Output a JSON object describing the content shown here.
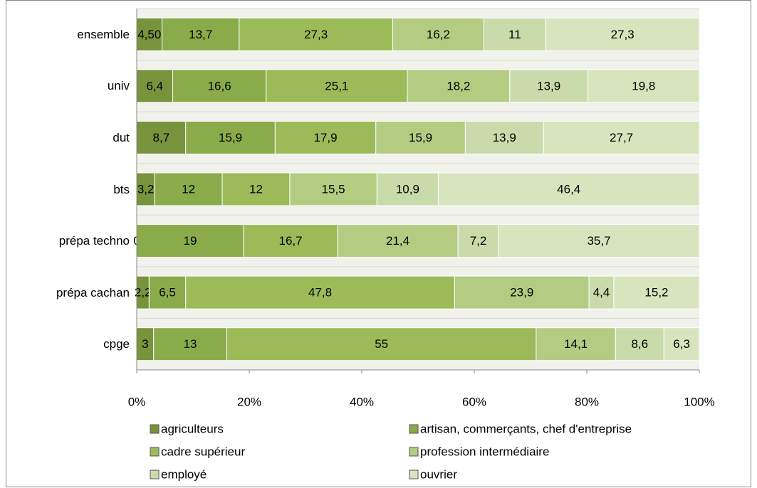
{
  "chart_data": {
    "type": "stacked_barh",
    "categories": [
      "ensemble",
      "univ",
      "dut",
      "bts",
      "prépa techno",
      "prépa cachan",
      "cpge"
    ],
    "series": [
      {
        "name": "agriculteurs",
        "color": "#77933c",
        "values": [
          4.5,
          6.4,
          8.7,
          3.2,
          0,
          2.2,
          3
        ],
        "value_labels": [
          "4,50",
          "6,4",
          "8,7",
          "3,2",
          "0",
          "2,2",
          "3"
        ]
      },
      {
        "name": "artisan, commerçants, chef d'entreprise",
        "color": "#8aab4a",
        "values": [
          13.7,
          16.6,
          15.9,
          12,
          19,
          6.5,
          13
        ],
        "value_labels": [
          "13,7",
          "16,6",
          "15,9",
          "12",
          "19",
          "6,5",
          "13"
        ]
      },
      {
        "name": "cadre supérieur",
        "color": "#9bbb59",
        "values": [
          27.3,
          25.1,
          17.9,
          12,
          16.7,
          47.8,
          55
        ],
        "value_labels": [
          "27,3",
          "25,1",
          "17,9",
          "12",
          "16,7",
          "47,8",
          "55"
        ]
      },
      {
        "name": "profession intermédiaire",
        "color": "#b3cc82",
        "values": [
          16.2,
          18.2,
          15.9,
          15.5,
          21.4,
          23.9,
          14.1
        ],
        "value_labels": [
          "16,2",
          "18,2",
          "15,9",
          "15,5",
          "21,4",
          "23,9",
          "14,1"
        ]
      },
      {
        "name": "employé",
        "color": "#c9dbab",
        "values": [
          11,
          13.9,
          13.9,
          10.9,
          7.2,
          4.4,
          8.6
        ],
        "value_labels": [
          "11",
          "13,9",
          "13,9",
          "10,9",
          "7,2",
          "4,4",
          "8,6"
        ]
      },
      {
        "name": "ouvrier",
        "color": "#d7e4bd",
        "values": [
          27.3,
          19.8,
          27.7,
          46.4,
          35.7,
          15.2,
          6.3
        ],
        "value_labels": [
          "27,3",
          "19,8",
          "27,7",
          "46,4",
          "35,7",
          "15,2",
          "6,3"
        ]
      }
    ],
    "xlim": [
      0,
      100
    ],
    "xticks": [
      {
        "value": 0,
        "label": "0%"
      },
      {
        "value": 20,
        "label": "20%"
      },
      {
        "value": 40,
        "label": "40%"
      },
      {
        "value": 60,
        "label": "60%"
      },
      {
        "value": 80,
        "label": "80%"
      },
      {
        "value": 100,
        "label": "100%"
      }
    ],
    "legend": "bottom"
  }
}
